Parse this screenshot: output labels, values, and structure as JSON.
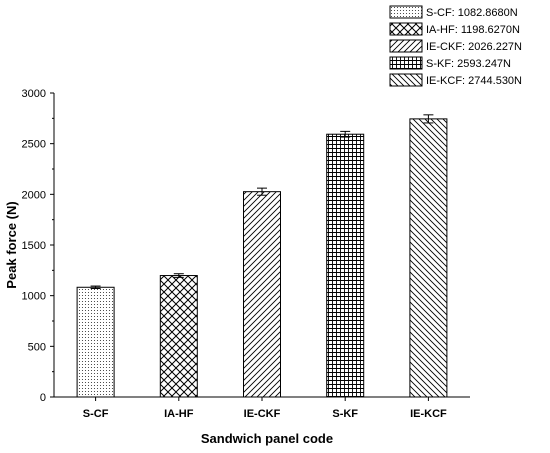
{
  "chart_data": {
    "type": "bar",
    "categories": [
      "S-CF",
      "IA-HF",
      "IE-CKF",
      "S-KF",
      "IE-KCF"
    ],
    "values": [
      1082.868,
      1198.627,
      2026.227,
      2593.247,
      2744.53
    ],
    "errors": [
      12,
      18,
      35,
      28,
      40
    ],
    "xlabel": "Sandwich panel code",
    "ylabel": "Peak force (N)",
    "ylim": [
      0,
      3000
    ],
    "yticks": [
      "0",
      "500",
      "1000",
      "1500",
      "2000",
      "2500",
      "3000"
    ],
    "legend_position": "top-right",
    "legend": [
      {
        "label": "S-CF: 1082.8680N",
        "pattern": "dots"
      },
      {
        "label": "IA-HF: 1198.6270N",
        "pattern": "crosshatch"
      },
      {
        "label": "IE-CKF: 2026.227N",
        "pattern": "diagonal"
      },
      {
        "label": "S-KF: 2593.247N",
        "pattern": "grid"
      },
      {
        "label": "IE-KCF: 2744.530N",
        "pattern": "back-diagonal"
      }
    ],
    "bar_patterns": [
      "dots",
      "crosshatch",
      "diagonal",
      "grid",
      "back-diagonal"
    ],
    "grid": false,
    "colors": {
      "stroke": "#000000",
      "background": "#ffffff"
    }
  }
}
